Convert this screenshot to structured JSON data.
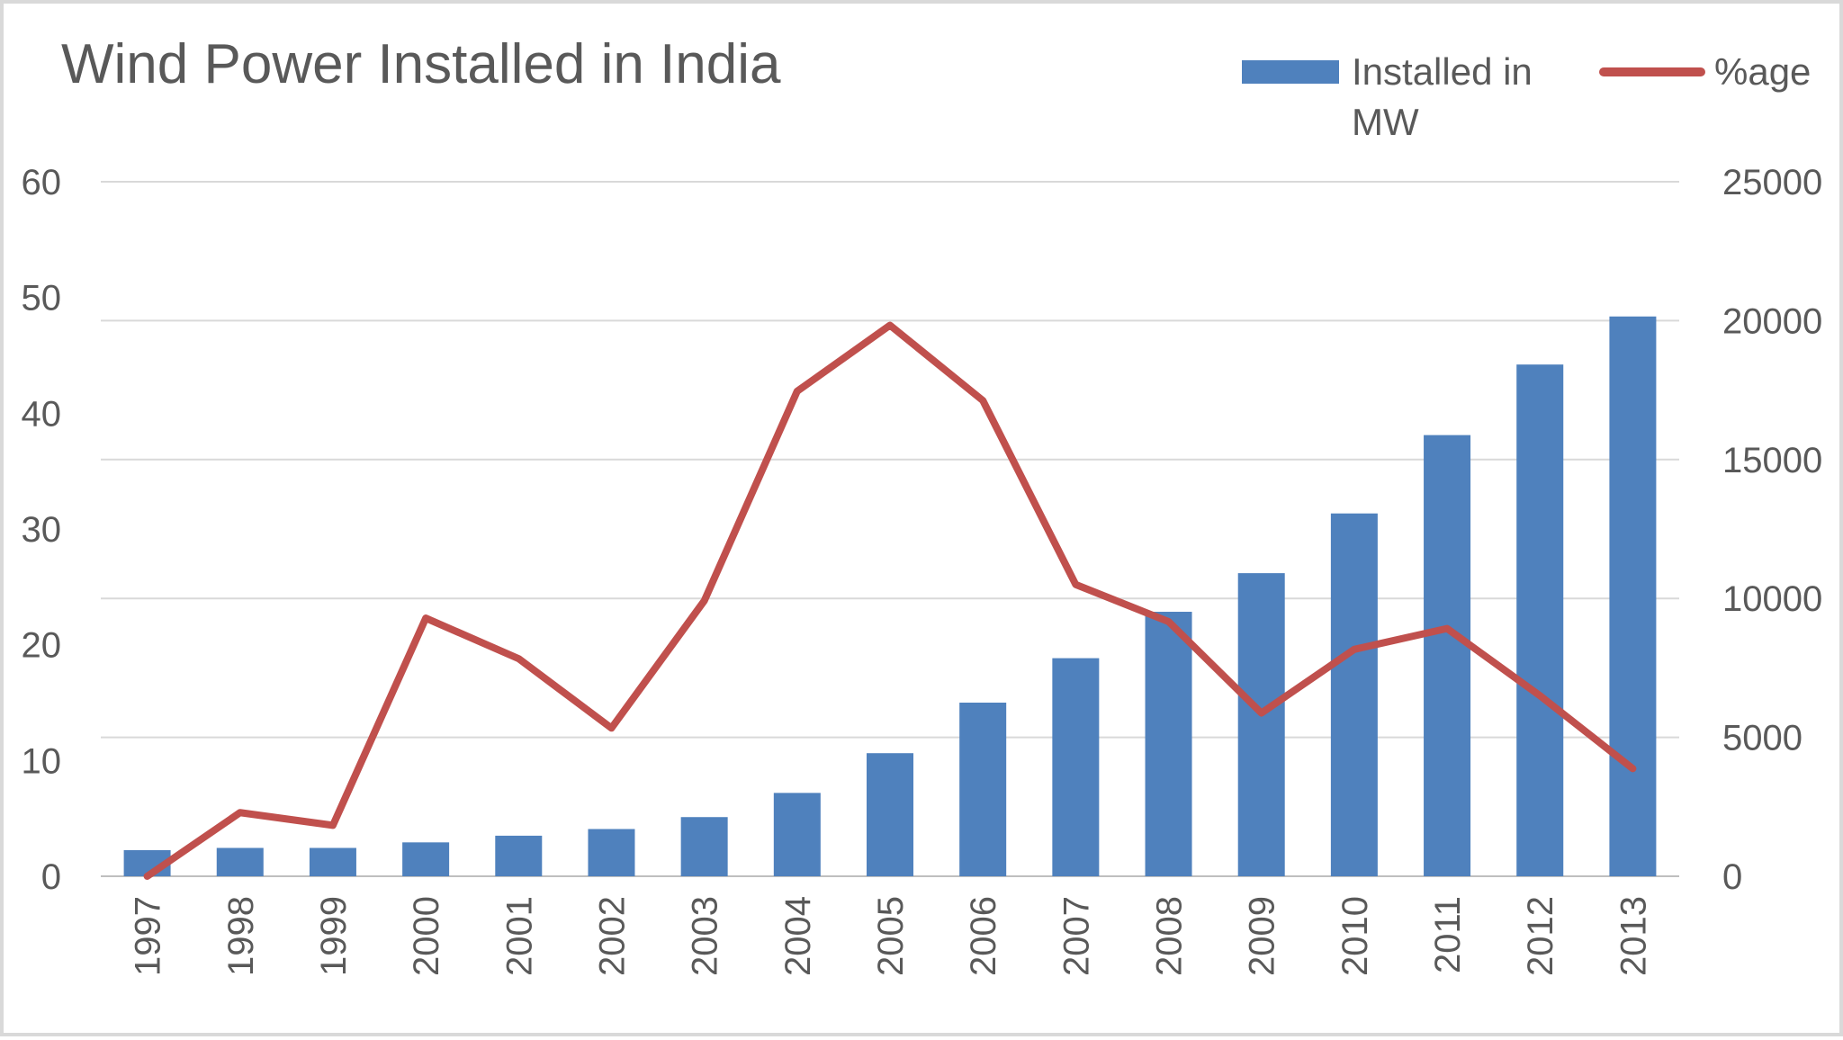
{
  "chart_data": {
    "type": "bar",
    "title": "Wind Power Installed in India",
    "categories": [
      "1997",
      "1998",
      "1999",
      "2000",
      "2001",
      "2002",
      "2003",
      "2004",
      "2005",
      "2006",
      "2007",
      "2008",
      "2009",
      "2010",
      "2011",
      "2012",
      "2013"
    ],
    "series": [
      {
        "name": "Installed in MW",
        "type": "bar",
        "axis": "right",
        "color": "#4f81bd",
        "values": [
          940,
          1020,
          1020,
          1220,
          1460,
          1700,
          2130,
          3000,
          4430,
          6250,
          7850,
          9520,
          10910,
          13060,
          15880,
          18420,
          20150
        ]
      },
      {
        "name": "%age",
        "type": "line",
        "axis": "left",
        "color": "#c0504d",
        "values": [
          0,
          5.5,
          4.4,
          22.3,
          18.8,
          12.8,
          23.8,
          41.9,
          47.6,
          41.1,
          25.2,
          22.0,
          14.1,
          19.6,
          21.4,
          15.6,
          9.3
        ]
      }
    ],
    "y_left": {
      "ticks": [
        "0",
        "10",
        "20",
        "30",
        "40",
        "50",
        "60"
      ],
      "ylim": [
        0,
        60
      ]
    },
    "y_right": {
      "ticks": [
        "0",
        "5000",
        "10000",
        "15000",
        "20000",
        "25000"
      ],
      "ylim": [
        0,
        25000
      ]
    },
    "grid": true,
    "legend": {
      "position": "top-right",
      "items": [
        "Installed in MW",
        "%age"
      ]
    }
  }
}
